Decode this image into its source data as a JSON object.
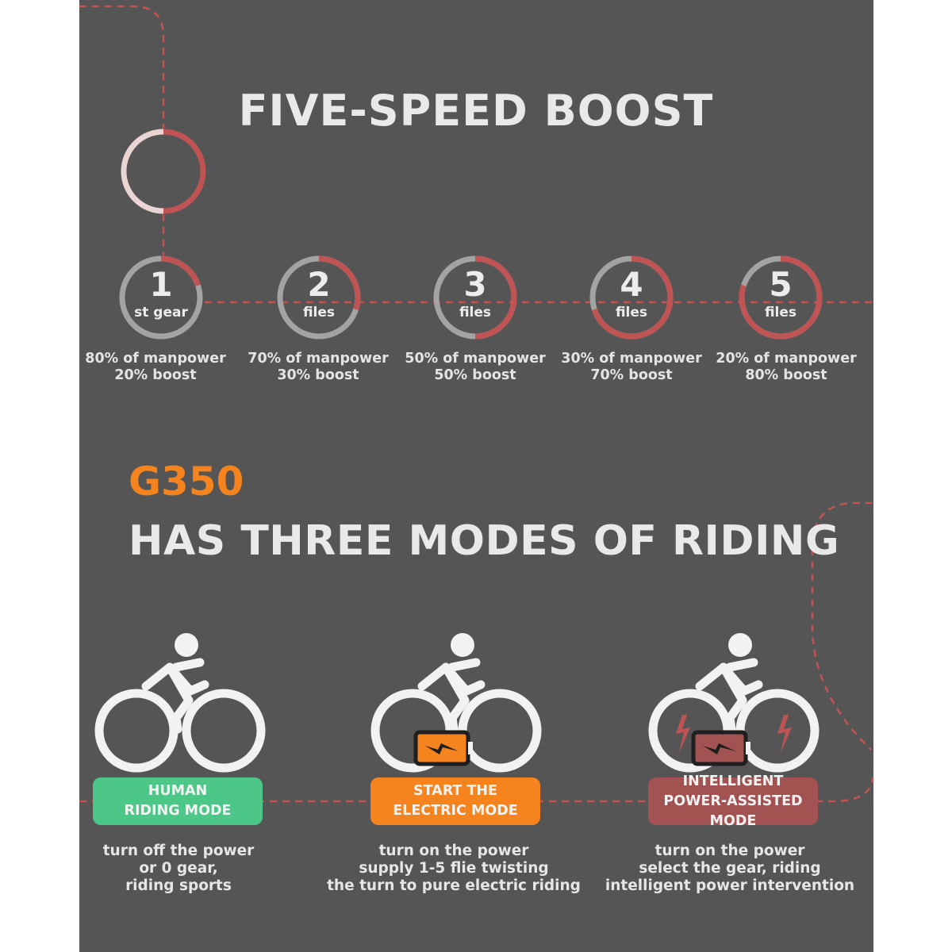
{
  "title": "FIVE-SPEED BOOST",
  "gears": [
    {
      "number": "1",
      "label": "st gear",
      "manpower": "80% of manpower",
      "boost": "20% boost",
      "boost_fraction": 0.2
    },
    {
      "number": "2",
      "label": "files",
      "manpower": "70% of manpower",
      "boost": "30% boost",
      "boost_fraction": 0.3
    },
    {
      "number": "3",
      "label": "files",
      "manpower": "50% of manpower",
      "boost": "50% boost",
      "boost_fraction": 0.5
    },
    {
      "number": "4",
      "label": "files",
      "manpower": "30% of manpower",
      "boost": "70% boost",
      "boost_fraction": 0.7
    },
    {
      "number": "5",
      "label": "files",
      "manpower": "20% of manpower",
      "boost": "80% boost",
      "boost_fraction": 0.8
    }
  ],
  "brand": "G350",
  "heading": "HAS THREE MODES OF RIDING",
  "modes": [
    {
      "label_line1": "HUMAN",
      "label_line2": "RIDING MODE",
      "color": "#4cc788",
      "desc": [
        "turn off the power",
        "or 0 gear,",
        "riding sports"
      ]
    },
    {
      "label_line1": "START THE",
      "label_line2": "ELECTRIC MODE",
      "color": "#f5841f",
      "desc": [
        "turn on the power",
        "supply 1-5 flie twisting",
        "the turn to pure electric riding"
      ]
    },
    {
      "label_line1": "INTELLIGENT",
      "label_line2": "POWER-ASSISTED MODE",
      "color": "#a35252",
      "desc": [
        "turn on the power",
        "select the gear, riding",
        "intelligent power intervention"
      ]
    }
  ],
  "colors": {
    "background": "#555555",
    "accent_red": "#c05454",
    "ring_gray": "#a3a3a3",
    "orange": "#f5841f",
    "green": "#4cc788"
  }
}
